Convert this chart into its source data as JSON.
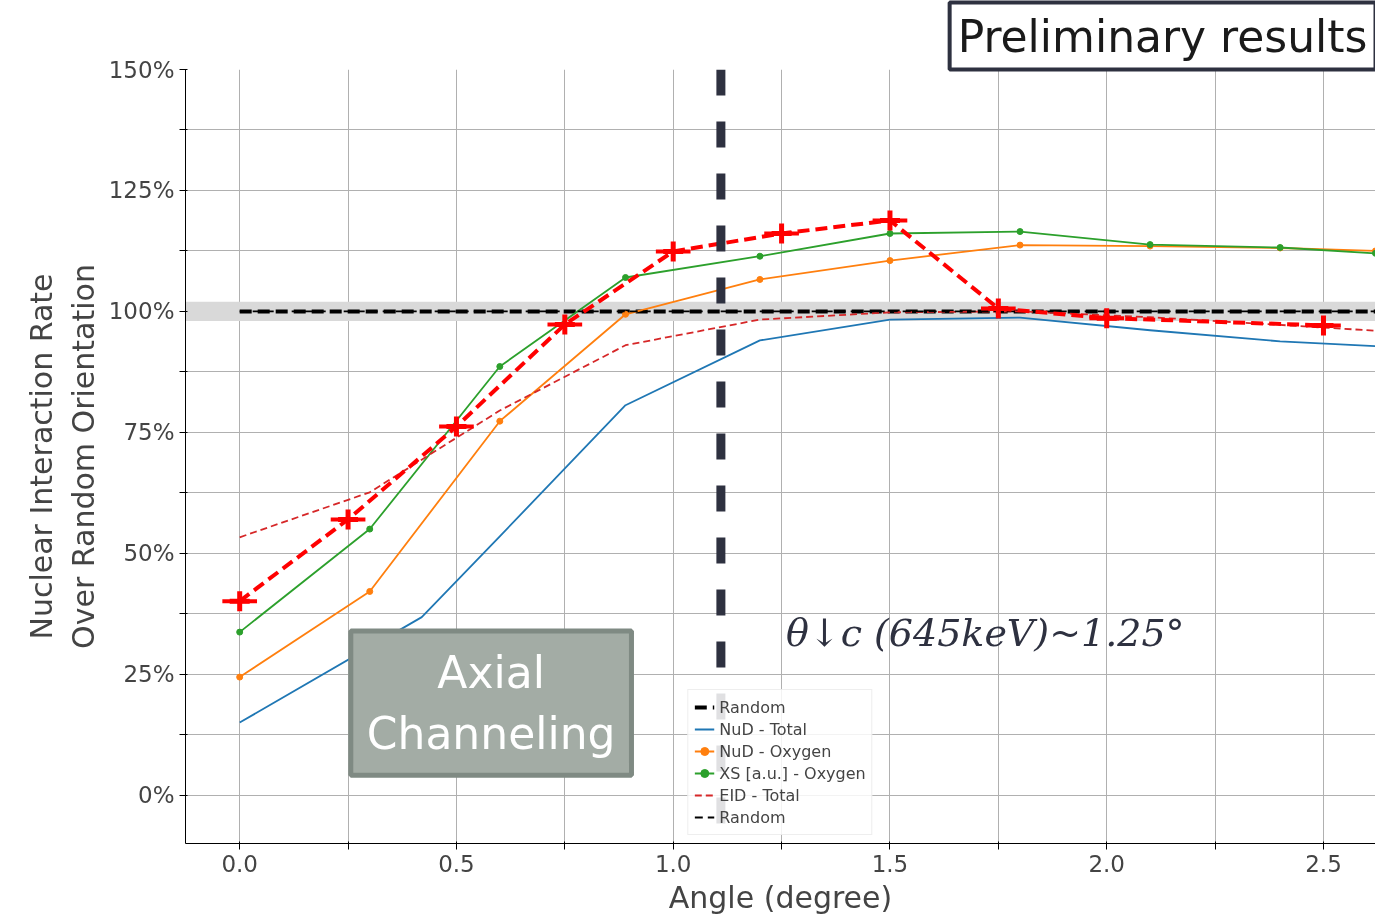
{
  "chart_data": {
    "type": "line",
    "xlabel": "Angle (degree)",
    "ylabel": "Nuclear Interaction Rate\nOver Random Orientation",
    "xlim": [
      -0.125,
      2.62
    ],
    "ylim": [
      -10,
      150
    ],
    "xticks": [
      {
        "value": 0,
        "label": "0.0"
      },
      {
        "value": 0.25,
        "label": null
      },
      {
        "value": 0.5,
        "label": "0.5"
      },
      {
        "value": 0.75,
        "label": null
      },
      {
        "value": 1,
        "label": "1.0"
      },
      {
        "value": 1.25,
        "label": null
      },
      {
        "value": 1.5,
        "label": "1.5"
      },
      {
        "value": 1.75,
        "label": null
      },
      {
        "value": 2,
        "label": "2.0"
      },
      {
        "value": 2.25,
        "label": null
      },
      {
        "value": 2.5,
        "label": "2.5"
      }
    ],
    "yticks": [
      {
        "value": 0,
        "label": "0%"
      },
      {
        "value": 12.5,
        "label": null
      },
      {
        "value": 25,
        "label": "25%"
      },
      {
        "value": 37.5,
        "label": null
      },
      {
        "value": 50,
        "label": "50%"
      },
      {
        "value": 62.5,
        "label": null
      },
      {
        "value": 75,
        "label": "75%"
      },
      {
        "value": 87.5,
        "label": null
      },
      {
        "value": 100,
        "label": "100%"
      },
      {
        "value": 112.5,
        "label": null
      },
      {
        "value": 125,
        "label": "125%"
      },
      {
        "value": 137.5,
        "label": null
      },
      {
        "value": 150,
        "label": "150%"
      }
    ],
    "grid": true,
    "legend": "bottom",
    "series": [
      {
        "name": "Random",
        "color": "#000000",
        "line_style": "dashed",
        "marker": "none",
        "x": [
          0,
          2.62
        ],
        "values": [
          100,
          100
        ]
      },
      {
        "name": "NuD - Total",
        "color": "#1f77b4",
        "line_style": "solid",
        "marker": "none",
        "x": [
          0,
          0.42,
          0.6,
          0.89,
          1.2,
          1.5,
          1.8,
          2.1,
          2.4,
          2.62
        ],
        "values": [
          15,
          36.8,
          53.5,
          80.6,
          94,
          98.3,
          98.7,
          96.1,
          93.8,
          92.8
        ]
      },
      {
        "name": "NuD - Oxygen",
        "color": "#ff7f0e",
        "line_style": "solid",
        "marker": "circle",
        "x": [
          0,
          0.3,
          0.6,
          0.89,
          1.2,
          1.5,
          1.8,
          2.1,
          2.4,
          2.62
        ],
        "values": [
          24.4,
          42.1,
          77.3,
          99.4,
          106.6,
          110.5,
          113.7,
          113.5,
          113.1,
          112.5
        ]
      },
      {
        "name": "XS [a.u.] - Oxygen",
        "color": "#2ca02c",
        "line_style": "solid",
        "marker": "circle",
        "x": [
          0,
          0.3,
          0.6,
          0.89,
          1.2,
          1.5,
          1.8,
          2.1,
          2.4,
          2.62
        ],
        "values": [
          33.7,
          55,
          88.6,
          107,
          111.4,
          116.1,
          116.5,
          113.8,
          113.2,
          112
        ]
      },
      {
        "name": "EID - Total",
        "color": "#d62728",
        "line_style": "dashed",
        "marker": "none",
        "x": [
          0,
          0.3,
          0.6,
          0.89,
          1.2,
          1.5,
          1.8,
          2.1,
          2.4,
          2.62
        ],
        "values": [
          53.3,
          62.6,
          79.5,
          93,
          98.3,
          99.8,
          100,
          98.8,
          97.2,
          96
        ]
      },
      {
        "name": "Random",
        "color": "#000000",
        "line_style": "dashed",
        "marker": "none",
        "x": [
          0,
          2.62
        ],
        "values": [
          100,
          100
        ]
      },
      {
        "color": "#ff0000",
        "line_style": "dashed",
        "marker": "cross",
        "x": [
          0,
          0.25,
          0.5,
          0.75,
          1,
          1.25,
          1.5,
          1.75,
          2,
          2.5
        ],
        "values": [
          40.1,
          57,
          76.2,
          97.3,
          112.4,
          116.1,
          118.8,
          100.6,
          98.6,
          97.1
        ],
        "xerrors": [
          0.04,
          0.04,
          0.04,
          0.04,
          0.04,
          0.04,
          0.04,
          0.04,
          0.04,
          0.04
        ]
      }
    ],
    "ref_lines": [
      {
        "axis": "x",
        "value": 1.11,
        "color": "#2e3140",
        "line_style": "dashed"
      }
    ],
    "bands": [
      {
        "axis": "y",
        "from": 98,
        "to": 102,
        "color": "#d9d9d9"
      }
    ],
    "annotations": [
      "Preliminary results",
      "Axial\nChanneling",
      "θ↓c (645keV)~1.25°"
    ]
  }
}
